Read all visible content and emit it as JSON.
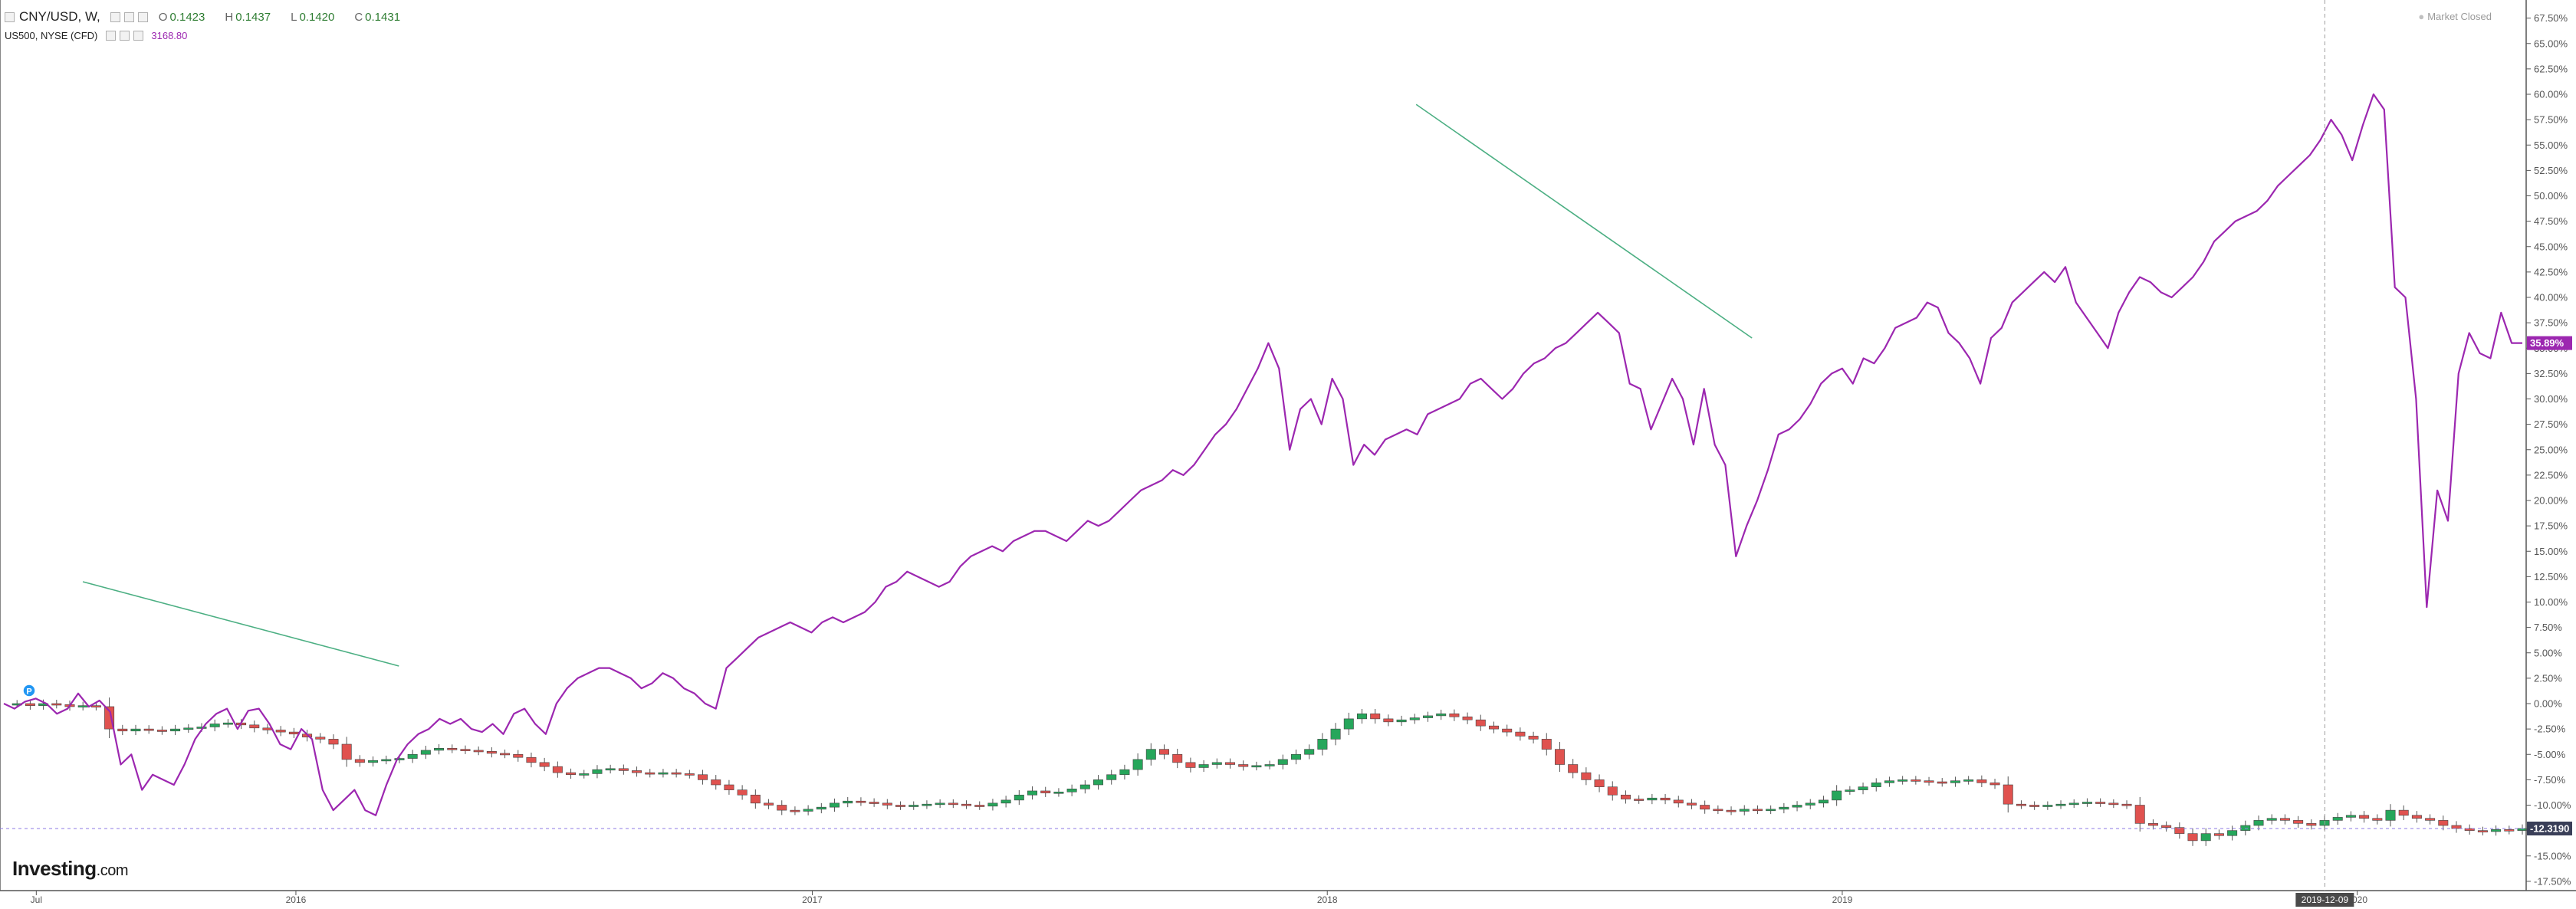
{
  "legend": {
    "symbol": "CNY/USD, W, ",
    "ohlc": [
      {
        "label": "O",
        "value": "0.1423"
      },
      {
        "label": "H",
        "value": "0.1437"
      },
      {
        "label": "L",
        "value": "0.1420"
      },
      {
        "label": "C",
        "value": "0.1431"
      }
    ],
    "compare_symbol": "US500, NYSE (CFD)",
    "compare_value": "3168.80"
  },
  "market_status": "Market Closed",
  "logo": {
    "main": "Investing",
    "suffix": ".com"
  },
  "badges": {
    "last_value": "35.89%",
    "cny_value": "-12.3190",
    "crosshair_date": "2019-12-09"
  },
  "event_marker": "P",
  "colors": {
    "compare_line": "#9c27b0",
    "up": "#26a65b",
    "down": "#e0524f",
    "trendline": "#4caf83",
    "axis_text": "#555555"
  },
  "chart_data": {
    "type": "line",
    "y_axis": {
      "unit": "%",
      "min": -17.5,
      "max": 67.5,
      "step": 2.5,
      "position": "right"
    },
    "x_axis": {
      "tick_labels": [
        "Jul",
        "2016",
        "2017",
        "2018",
        "2019",
        "2020"
      ],
      "start": "2015-06",
      "end": "2020-06"
    },
    "grid": false,
    "series": [
      {
        "name": "US500, NYSE (CFD)",
        "type": "line",
        "values": [
          0.0,
          -0.5,
          0.2,
          0.5,
          0.0,
          -1.0,
          -0.5,
          1.0,
          -0.3,
          0.3,
          -0.8,
          -6.0,
          -5.0,
          -8.5,
          -7.0,
          -7.5,
          -8.0,
          -6.0,
          -3.5,
          -2.0,
          -1.0,
          -0.5,
          -2.5,
          -0.7,
          -0.5,
          -2.0,
          -4.0,
          -4.5,
          -2.5,
          -3.5,
          -8.5,
          -10.5,
          -9.5,
          -8.5,
          -10.5,
          -11.0,
          -8.0,
          -5.5,
          -4.0,
          -3.0,
          -2.5,
          -1.5,
          -2.0,
          -1.5,
          -2.5,
          -2.8,
          -2.0,
          -3.0,
          -1.0,
          -0.5,
          -2.0,
          -3.0,
          0.0,
          1.5,
          2.5,
          3.0,
          3.5,
          3.5,
          3.0,
          2.5,
          1.5,
          2.0,
          3.0,
          2.5,
          1.5,
          1.0,
          0.0,
          -0.5,
          3.5,
          4.5,
          5.5,
          6.5,
          7.0,
          7.5,
          8.0,
          7.5,
          7.0,
          8.0,
          8.5,
          8.0,
          8.5,
          9.0,
          10.0,
          11.5,
          12.0,
          13.0,
          12.5,
          12.0,
          11.5,
          12.0,
          13.5,
          14.5,
          15.0,
          15.5,
          15.0,
          16.0,
          16.5,
          17.0,
          17.0,
          16.5,
          16.0,
          17.0,
          18.0,
          17.5,
          18.0,
          19.0,
          20.0,
          21.0,
          21.5,
          22.0,
          23.0,
          22.5,
          23.5,
          25.0,
          26.5,
          27.5,
          29.0,
          31.0,
          33.0,
          35.5,
          33.0,
          25.0,
          29.0,
          30.0,
          27.5,
          32.0,
          30.0,
          23.5,
          25.5,
          24.5,
          26.0,
          26.5,
          27.0,
          26.5,
          28.5,
          29.0,
          29.5,
          30.0,
          31.5,
          32.0,
          31.0,
          30.0,
          31.0,
          32.5,
          33.5,
          34.0,
          35.0,
          35.5,
          36.5,
          37.5,
          38.5,
          37.5,
          36.5,
          31.5,
          31.0,
          27.0,
          29.5,
          32.0,
          30.0,
          25.5,
          31.0,
          25.5,
          23.5,
          14.5,
          17.5,
          20.0,
          23.0,
          26.5,
          27.0,
          28.0,
          29.5,
          31.5,
          32.5,
          33.0,
          31.5,
          34.0,
          33.5,
          35.0,
          37.0,
          37.5,
          38.0,
          39.5,
          39.0,
          36.5,
          35.5,
          34.0,
          31.5,
          36.0,
          37.0,
          39.5,
          40.5,
          41.5,
          42.5,
          41.5,
          43.0,
          39.5,
          38.0,
          36.5,
          35.0,
          38.5,
          40.5,
          42.0,
          41.5,
          40.5,
          40.0,
          41.0,
          42.0,
          43.5,
          45.5,
          46.5,
          47.5,
          48.0,
          48.5,
          49.5,
          51.0,
          52.0,
          53.0,
          54.0,
          55.5,
          57.5,
          56.0,
          53.5,
          57.0,
          60.0,
          58.5,
          41.0,
          40.0,
          30.0,
          9.5,
          21.0,
          18.0,
          32.5,
          36.5,
          34.5,
          34.0,
          38.5,
          35.5,
          35.5
        ]
      },
      {
        "name": "CNY/USD",
        "type": "candlestick",
        "values": [
          0.0,
          0.0,
          -0.2,
          0.0,
          -0.1,
          -0.3,
          -0.2,
          -0.3,
          -2.5,
          -2.7,
          -2.5,
          -2.6,
          -2.7,
          -2.5,
          -2.4,
          -2.3,
          -2.0,
          -1.9,
          -2.1,
          -2.4,
          -2.6,
          -2.8,
          -3.0,
          -3.3,
          -3.5,
          -4.0,
          -5.5,
          -5.8,
          -5.6,
          -5.5,
          -5.4,
          -5.0,
          -4.6,
          -4.4,
          -4.5,
          -4.6,
          -4.7,
          -4.9,
          -5.0,
          -5.3,
          -5.8,
          -6.2,
          -6.8,
          -7.0,
          -6.9,
          -6.5,
          -6.4,
          -6.6,
          -6.8,
          -6.9,
          -6.8,
          -6.9,
          -7.0,
          -7.5,
          -8.0,
          -8.5,
          -9.0,
          -9.8,
          -10.0,
          -10.5,
          -10.6,
          -10.4,
          -10.2,
          -9.8,
          -9.6,
          -9.7,
          -9.8,
          -10.0,
          -10.1,
          -10.0,
          -9.9,
          -9.8,
          -9.9,
          -10.0,
          -10.1,
          -9.8,
          -9.5,
          -9.0,
          -8.6,
          -8.8,
          -8.7,
          -8.4,
          -8.0,
          -7.5,
          -7.0,
          -6.5,
          -5.5,
          -4.5,
          -5.0,
          -5.8,
          -6.3,
          -6.0,
          -5.8,
          -6.0,
          -6.2,
          -6.1,
          -6.0,
          -5.5,
          -5.0,
          -4.5,
          -3.5,
          -2.5,
          -1.5,
          -1.0,
          -1.5,
          -1.8,
          -1.6,
          -1.4,
          -1.2,
          -1.0,
          -1.3,
          -1.6,
          -2.2,
          -2.5,
          -2.8,
          -3.2,
          -3.5,
          -4.5,
          -6.0,
          -6.8,
          -7.5,
          -8.2,
          -9.0,
          -9.4,
          -9.5,
          -9.3,
          -9.5,
          -9.8,
          -10.0,
          -10.4,
          -10.5,
          -10.6,
          -10.4,
          -10.5,
          -10.4,
          -10.2,
          -10.0,
          -9.8,
          -9.5,
          -8.6,
          -8.5,
          -8.2,
          -7.8,
          -7.6,
          -7.5,
          -7.6,
          -7.7,
          -7.8,
          -7.6,
          -7.5,
          -7.8,
          -8.0,
          -9.9,
          -10.0,
          -10.1,
          -10.0,
          -9.9,
          -9.8,
          -9.7,
          -9.8,
          -9.9,
          -10.0,
          -11.8,
          -12.0,
          -12.2,
          -12.8,
          -13.5,
          -12.8,
          -13.0,
          -12.5,
          -12.0,
          -11.5,
          -11.3,
          -11.5,
          -11.8,
          -12.0,
          -11.5,
          -11.2,
          -11.0,
          -11.3,
          -11.5,
          -10.5,
          -11.0,
          -11.3,
          -11.5,
          -12.0,
          -12.3,
          -12.5,
          -12.6,
          -12.4,
          -12.5,
          -12.3
        ]
      }
    ],
    "trendlines": [
      {
        "x1": "2015-08-03",
        "y1": 12.0,
        "x2": "2016-03-14",
        "y2": 3.7
      },
      {
        "x1": "2018-03-05",
        "y1": 59.0,
        "x2": "2018-10-29",
        "y2": 36.0
      }
    ]
  }
}
